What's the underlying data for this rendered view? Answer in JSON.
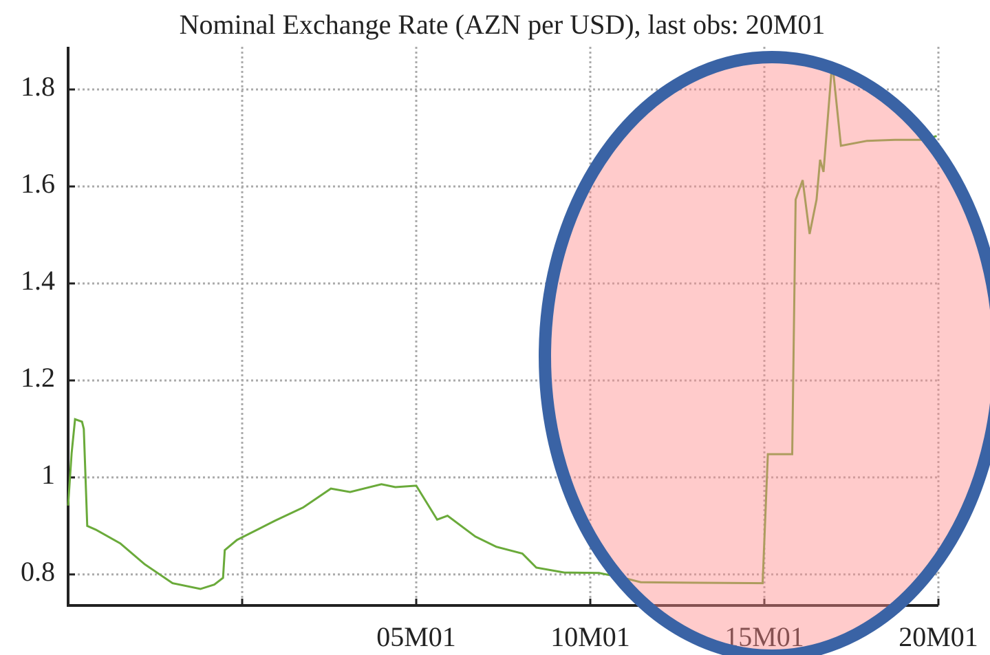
{
  "chart_data": {
    "type": "line",
    "title": "Nominal Exchange Rate (AZN per USD), last obs: 20M01",
    "x": [
      1995.0,
      1995.1,
      1995.2,
      1995.4,
      1995.45,
      1995.55,
      1995.8,
      1996.5,
      1997.2,
      1998.0,
      1998.8,
      1999.2,
      1999.45,
      1999.5,
      1999.85,
      2000.95,
      2001.75,
      2002.55,
      2003.1,
      2003.5,
      2004.0,
      2004.4,
      2005.0,
      2005.6,
      2005.9,
      2006.7,
      2007.3,
      2008.05,
      2008.45,
      2009.25,
      2010.25,
      2010.95,
      2011.45,
      2012.8,
      2014.95,
      2015.1,
      2015.8,
      2015.9,
      2016.1,
      2016.3,
      2016.5,
      2016.6,
      2016.7,
      2016.95,
      2017.2,
      2017.95,
      2018.75,
      2019.55,
      2019.95
    ],
    "series": [
      {
        "color": "#6aaa3a",
        "values": [
          0.942,
          1.05,
          1.12,
          1.115,
          1.1,
          0.9,
          0.892,
          0.864,
          0.821,
          0.782,
          0.77,
          0.779,
          0.793,
          0.85,
          0.871,
          0.911,
          0.938,
          0.977,
          0.97,
          0.977,
          0.986,
          0.98,
          0.983,
          0.913,
          0.921,
          0.878,
          0.857,
          0.843,
          0.814,
          0.804,
          0.803,
          0.793,
          0.784,
          0.783,
          0.782,
          1.048,
          1.048,
          1.573,
          1.613,
          1.502,
          1.573,
          1.655,
          1.63,
          1.857,
          1.684,
          1.694,
          1.696,
          1.696,
          1.704
        ]
      }
    ],
    "xlim": [
      1995.0,
      2020.0
    ],
    "xticks": [
      {
        "value": 2000,
        "label": null
      },
      {
        "value": 2005,
        "label": "05M01"
      },
      {
        "value": 2010,
        "label": "10M01"
      },
      {
        "value": 2015,
        "label": "15M01"
      },
      {
        "value": 2020,
        "label": "20M01"
      }
    ],
    "ylim": [
      0.736,
      1.888
    ],
    "yticks": [
      0.8,
      1,
      1.2,
      1.4,
      1.6,
      1.8
    ],
    "grid": true
  }
}
